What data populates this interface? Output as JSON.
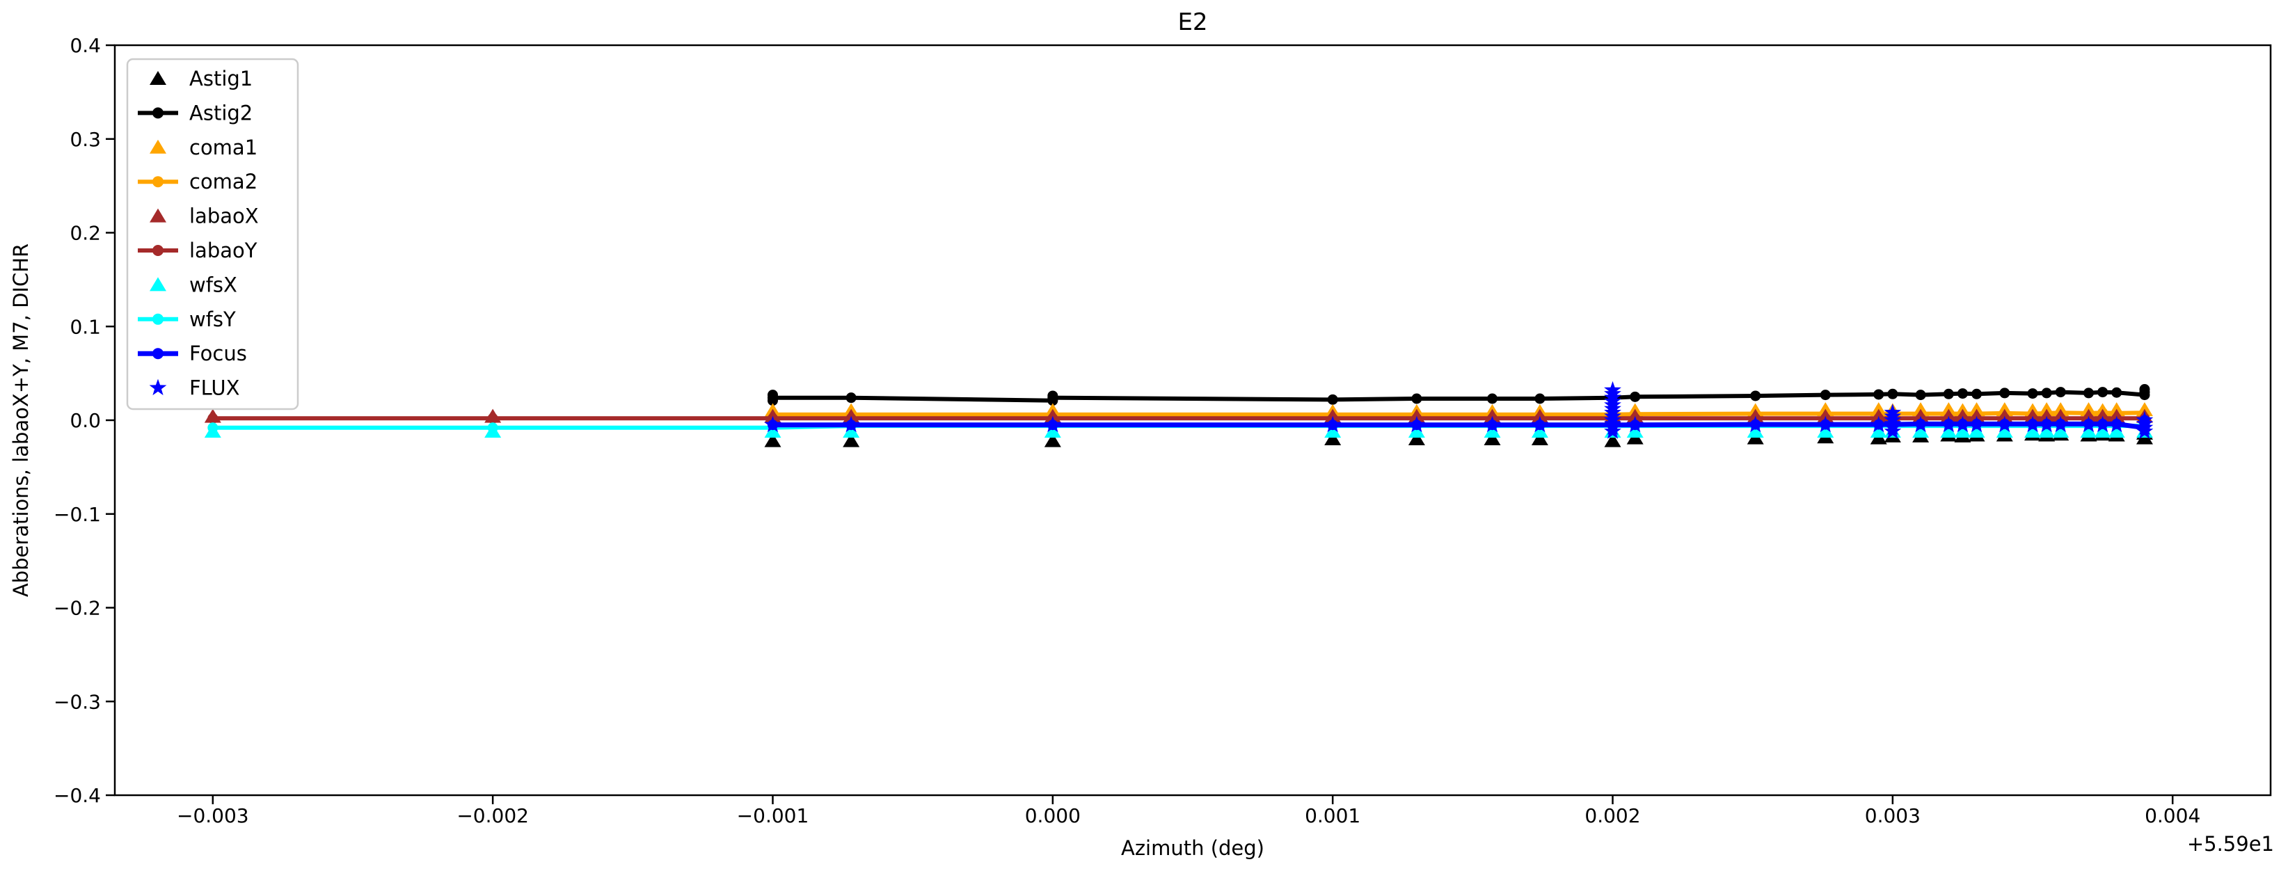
{
  "figure": {
    "title": "E2"
  },
  "colors": {
    "background": "#ffffff",
    "axis": "#000000",
    "legend_border": "#cccccc",
    "black": "#000000",
    "orange": "#ffa500",
    "brown": "#a52a2a",
    "cyan": "#00ffff",
    "blue": "#0000ff"
  },
  "chart_data": {
    "type": "line",
    "title": "E2",
    "xlabel": "Azimuth (deg)",
    "ylabel": "Abberations, labaoX+Y, M7, DICHR",
    "x_offset_text": "+5.59e1",
    "xlim": [
      -0.00335,
      0.00435
    ],
    "ylim": [
      -0.4,
      0.4
    ],
    "grid": false,
    "legend_position": "upper left",
    "xticks": {
      "values": [
        -0.003,
        -0.002,
        -0.001,
        0.0,
        0.001,
        0.002,
        0.003,
        0.004
      ],
      "labels": [
        "−0.003",
        "−0.002",
        "−0.001",
        "0.000",
        "0.001",
        "0.002",
        "0.003",
        "0.004"
      ]
    },
    "yticks": {
      "values": [
        -0.4,
        -0.3,
        -0.2,
        -0.1,
        0.0,
        0.1,
        0.2,
        0.3,
        0.4
      ],
      "labels": [
        "−0.4",
        "−0.3",
        "−0.2",
        "−0.1",
        "0.0",
        "0.1",
        "0.2",
        "0.3",
        "0.4"
      ]
    },
    "series": [
      {
        "name": "Astig1",
        "color": "#000000",
        "line": false,
        "marker": "triangle",
        "x": [
          -0.001,
          -0.00072,
          0.0,
          0.001,
          0.0013,
          0.00157,
          0.00174,
          0.002,
          0.00208,
          0.00251,
          0.00276,
          0.00295,
          0.003,
          0.0031,
          0.0032,
          0.00325,
          0.0033,
          0.0034,
          0.0035,
          0.00355,
          0.0036,
          0.0037,
          0.00375,
          0.0038,
          0.0039,
          0.0039
        ],
        "y": [
          -0.022,
          -0.022,
          -0.022,
          -0.02,
          -0.02,
          -0.02,
          -0.02,
          -0.022,
          -0.019,
          -0.019,
          -0.018,
          -0.019,
          -0.017,
          -0.017,
          -0.016,
          -0.017,
          -0.016,
          -0.016,
          -0.015,
          -0.016,
          -0.015,
          -0.016,
          -0.015,
          -0.016,
          -0.019,
          -0.014
        ]
      },
      {
        "name": "Astig2",
        "color": "#000000",
        "line": true,
        "marker": "dot",
        "x": [
          -0.001,
          -0.001,
          -0.001,
          -0.00072,
          0.0,
          0.0,
          0.0,
          0.001,
          0.0013,
          0.00157,
          0.00174,
          0.002,
          0.00208,
          0.00251,
          0.00276,
          0.00295,
          0.003,
          0.0031,
          0.0032,
          0.00325,
          0.0033,
          0.0034,
          0.0035,
          0.00355,
          0.0036,
          0.0037,
          0.00375,
          0.0038,
          0.0039,
          0.0039,
          0.0039
        ],
        "y": [
          0.021,
          0.027,
          0.024,
          0.024,
          0.021,
          0.026,
          0.024,
          0.022,
          0.023,
          0.023,
          0.023,
          0.024,
          0.025,
          0.026,
          0.027,
          0.0275,
          0.028,
          0.027,
          0.028,
          0.0285,
          0.028,
          0.029,
          0.0285,
          0.029,
          0.03,
          0.029,
          0.03,
          0.0295,
          0.027,
          0.033,
          0.03
        ]
      },
      {
        "name": "coma1",
        "color": "#ffa500",
        "line": false,
        "marker": "triangle",
        "x": [
          -0.001,
          -0.00072,
          0.0,
          0.001,
          0.0013,
          0.00157,
          0.00174,
          0.002,
          0.00208,
          0.00251,
          0.00276,
          0.00295,
          0.003,
          0.0031,
          0.0032,
          0.00325,
          0.0033,
          0.0034,
          0.0035,
          0.00355,
          0.0036,
          0.0037,
          0.00375,
          0.0038,
          0.0039
        ],
        "y": [
          0.01,
          0.01,
          0.01,
          0.009,
          0.009,
          0.009,
          0.009,
          0.01,
          0.01,
          0.01,
          0.011,
          0.011,
          0.01,
          0.011,
          0.011,
          0.01,
          0.011,
          0.011,
          0.01,
          0.011,
          0.011,
          0.011,
          0.01,
          0.011,
          0.011
        ]
      },
      {
        "name": "coma2",
        "color": "#ffa500",
        "line": true,
        "marker": "dot",
        "x": [
          -0.001,
          -0.00072,
          0.0,
          0.001,
          0.0013,
          0.00157,
          0.00174,
          0.002,
          0.00208,
          0.00251,
          0.00276,
          0.00295,
          0.003,
          0.0031,
          0.0032,
          0.00325,
          0.0033,
          0.0034,
          0.0035,
          0.00355,
          0.0036,
          0.0037,
          0.00375,
          0.0038,
          0.0039
        ],
        "y": [
          0.006,
          0.006,
          0.006,
          0.006,
          0.006,
          0.006,
          0.006,
          0.006,
          0.0065,
          0.007,
          0.007,
          0.007,
          0.007,
          0.007,
          0.007,
          0.007,
          0.007,
          0.0075,
          0.007,
          0.0075,
          0.008,
          0.0075,
          0.008,
          0.0075,
          0.008
        ]
      },
      {
        "name": "labaoX",
        "color": "#a52a2a",
        "line": false,
        "marker": "triangle",
        "x": [
          -0.003,
          -0.002,
          -0.001,
          -0.00072,
          0.0,
          0.001,
          0.0013,
          0.00157,
          0.00174,
          0.002,
          0.00208,
          0.00251,
          0.00276,
          0.00295,
          0.003,
          0.0031,
          0.0032,
          0.00325,
          0.0033,
          0.0034,
          0.0035,
          0.00355,
          0.0036,
          0.0037,
          0.00375,
          0.0038,
          0.0039
        ],
        "y": [
          0.004,
          0.004,
          0.004,
          0.004,
          0.004,
          0.004,
          0.004,
          0.004,
          0.004,
          0.004,
          0.004,
          0.004,
          0.004,
          0.004,
          0.004,
          0.004,
          0.004,
          0.004,
          0.004,
          0.004,
          0.004,
          0.004,
          0.004,
          0.004,
          0.004,
          0.004,
          0.004
        ]
      },
      {
        "name": "labaoY",
        "color": "#a52a2a",
        "line": true,
        "marker": "dot",
        "x": [
          -0.003,
          -0.002,
          -0.001,
          -0.00072,
          0.0,
          0.001,
          0.0013,
          0.00157,
          0.00174,
          0.002,
          0.00208,
          0.00251,
          0.00276,
          0.00295,
          0.003,
          0.0031,
          0.0032,
          0.00325,
          0.0033,
          0.0034,
          0.0035,
          0.00355,
          0.0036,
          0.0037,
          0.00375,
          0.0038,
          0.0039
        ],
        "y": [
          0.002,
          0.002,
          0.002,
          0.002,
          0.002,
          0.002,
          0.002,
          0.002,
          0.002,
          0.002,
          0.002,
          0.002,
          0.002,
          0.002,
          0.002,
          0.002,
          0.002,
          0.002,
          0.002,
          0.002,
          0.002,
          0.002,
          0.002,
          0.002,
          0.002,
          0.002,
          0.002
        ]
      },
      {
        "name": "wfsX",
        "color": "#00ffff",
        "line": false,
        "marker": "triangle",
        "x": [
          -0.003,
          -0.002,
          -0.001,
          -0.00072,
          0.0,
          0.001,
          0.0013,
          0.00157,
          0.00174,
          0.002,
          0.00208,
          0.00251,
          0.00276,
          0.00295,
          0.003,
          0.0031,
          0.0032,
          0.00325,
          0.0033,
          0.0034,
          0.0035,
          0.00355,
          0.0036,
          0.0037,
          0.00375,
          0.0038,
          0.0039
        ],
        "y": [
          -0.012,
          -0.012,
          -0.012,
          -0.012,
          -0.012,
          -0.012,
          -0.012,
          -0.012,
          -0.012,
          -0.012,
          -0.012,
          -0.012,
          -0.012,
          -0.012,
          -0.012,
          -0.012,
          -0.012,
          -0.012,
          -0.012,
          -0.012,
          -0.012,
          -0.012,
          -0.012,
          -0.012,
          -0.012,
          -0.012,
          -0.012
        ]
      },
      {
        "name": "wfsY",
        "color": "#00ffff",
        "line": true,
        "marker": "dot",
        "x": [
          -0.003,
          -0.002,
          -0.001,
          -0.00072,
          0.0,
          0.001,
          0.0013,
          0.00157,
          0.00174,
          0.002,
          0.00208,
          0.00251,
          0.00276,
          0.00295,
          0.003,
          0.0031,
          0.0032,
          0.00325,
          0.0033,
          0.0034,
          0.0035,
          0.00355,
          0.0036,
          0.0037,
          0.00375,
          0.0038,
          0.0039
        ],
        "y": [
          -0.008,
          -0.008,
          -0.008,
          -0.006,
          -0.006,
          -0.006,
          -0.006,
          -0.006,
          -0.006,
          -0.006,
          -0.006,
          -0.006,
          -0.006,
          -0.006,
          -0.006,
          -0.006,
          -0.006,
          -0.006,
          -0.006,
          -0.006,
          -0.006,
          -0.006,
          -0.006,
          -0.006,
          -0.006,
          -0.006,
          -0.006
        ]
      },
      {
        "name": "Focus",
        "color": "#0000ff",
        "line": true,
        "marker": "dot",
        "x": [
          -0.001,
          -0.00072,
          0.0,
          0.001,
          0.0013,
          0.00157,
          0.00174,
          0.002,
          0.00208,
          0.00251,
          0.00276,
          0.00295,
          0.003,
          0.0031,
          0.0032,
          0.00325,
          0.0033,
          0.0034,
          0.0035,
          0.00355,
          0.0036,
          0.0037,
          0.00375,
          0.0038,
          0.0039,
          0.0039,
          0.0039
        ],
        "y": [
          -0.005,
          -0.005,
          -0.005,
          -0.005,
          -0.005,
          -0.005,
          -0.005,
          -0.005,
          -0.005,
          -0.0045,
          -0.0045,
          -0.0045,
          -0.0045,
          -0.004,
          -0.004,
          -0.004,
          -0.004,
          -0.004,
          -0.004,
          -0.004,
          -0.004,
          -0.004,
          -0.004,
          -0.004,
          -0.008,
          0.0,
          -0.004
        ]
      },
      {
        "name": "FLUX",
        "color": "#0000ff",
        "line": false,
        "marker": "star",
        "x": [
          -0.001,
          -0.00072,
          0.0,
          0.001,
          0.0013,
          0.00157,
          0.00174,
          0.00208,
          0.00251,
          0.00276,
          0.00295,
          0.0031,
          0.0032,
          0.00325,
          0.0033,
          0.0034,
          0.0035,
          0.00355,
          0.0036,
          0.0037,
          0.00375,
          0.0038,
          0.002,
          0.002,
          0.002,
          0.002,
          0.002,
          0.002,
          0.002,
          0.002,
          0.002,
          0.002,
          0.002,
          0.002,
          0.003,
          0.003,
          0.003,
          0.003,
          0.003,
          0.003,
          0.0039,
          0.0039,
          0.0039,
          0.0039
        ],
        "y": [
          -0.005,
          -0.005,
          -0.005,
          -0.005,
          -0.005,
          -0.005,
          -0.005,
          -0.005,
          -0.005,
          -0.005,
          -0.005,
          -0.005,
          -0.005,
          -0.005,
          -0.005,
          -0.005,
          -0.005,
          -0.005,
          -0.005,
          -0.005,
          -0.005,
          -0.005,
          0.032,
          0.028,
          0.024,
          0.02,
          0.016,
          0.012,
          0.008,
          0.004,
          0.0,
          -0.004,
          -0.008,
          -0.012,
          0.008,
          0.004,
          0.0,
          -0.004,
          -0.008,
          -0.012,
          0.0,
          -0.004,
          -0.008,
          -0.012
        ]
      }
    ]
  }
}
